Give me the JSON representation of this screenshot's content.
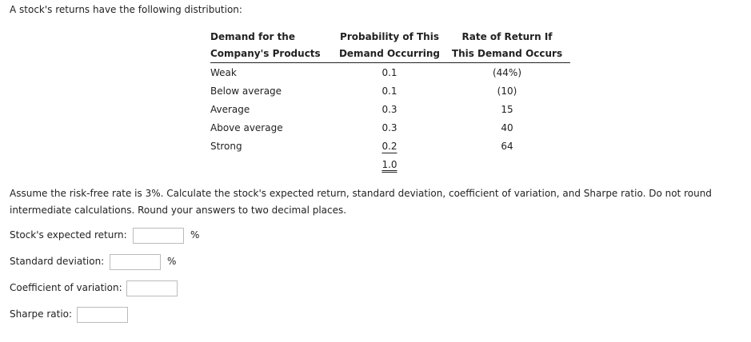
{
  "intro": "A stock's returns have the following distribution:",
  "table": {
    "headers": [
      [
        "Demand for the",
        "Company's Products"
      ],
      [
        "Probability of This",
        "Demand Occurring"
      ],
      [
        "Rate of Return If",
        "This Demand Occurs"
      ]
    ],
    "rows": [
      [
        "Weak",
        "0.1",
        "(44%)"
      ],
      [
        "Below average",
        "0.1",
        "(10)"
      ],
      [
        "Average",
        "0.3",
        "15"
      ],
      [
        "Above average",
        "0.3",
        "40"
      ],
      [
        "Strong",
        "0.2",
        "64"
      ]
    ],
    "total": "1.0"
  },
  "instructions": "Assume the risk-free rate is 3%. Calculate the stock's expected return, standard deviation, coefficient of variation, and Sharpe ratio. Do not round intermediate calculations. Round your answers to two decimal places.",
  "fields": [
    {
      "label": "Stock's expected return:",
      "unit": "%"
    },
    {
      "label": "Standard deviation:",
      "unit": "%"
    },
    {
      "label": "Coefficient of variation:"
    },
    {
      "label": "Sharpe ratio:"
    }
  ]
}
